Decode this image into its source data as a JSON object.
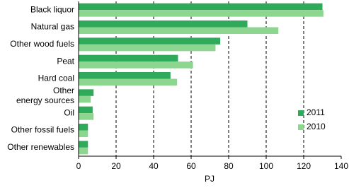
{
  "chart_data": {
    "type": "barh",
    "categories": [
      "Black liquor",
      "Natural gas",
      "Other wood fuels",
      "Peat",
      "Hard coal",
      "Other\nenergy sources",
      "Oil",
      "Other fossil fuels",
      "Other renewables"
    ],
    "series": [
      {
        "name": "2011",
        "color": "#2eaa5a",
        "values": [
          130,
          90,
          75.5,
          53,
          49,
          8,
          7.5,
          5,
          5
        ]
      },
      {
        "name": "2010",
        "color": "#8dd68f",
        "values": [
          130.5,
          106.5,
          73,
          61,
          52.5,
          6.5,
          8,
          5,
          5
        ]
      }
    ],
    "xlim": [
      0,
      140
    ],
    "xticks": [
      0,
      20,
      40,
      60,
      80,
      100,
      120,
      140
    ],
    "xlabel": "PJ",
    "grid": true,
    "legend": "lower right"
  }
}
